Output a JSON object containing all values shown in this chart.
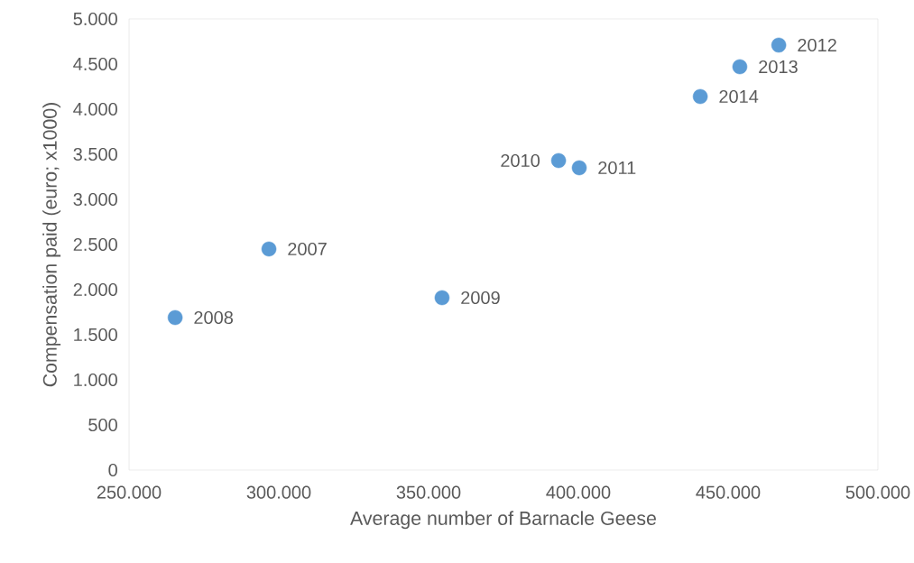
{
  "chart_data": {
    "type": "scatter",
    "xlabel": "Average number of Barnacle Geese",
    "ylabel": "Compensation paid (euro; x1000)",
    "x": [
      296700,
      265400,
      354500,
      393400,
      400300,
      466900,
      453900,
      440700
    ],
    "values": [
      2450,
      1690,
      1910,
      3430,
      3350,
      4710,
      4470,
      4140
    ],
    "color": "#5b9bd5",
    "xlim": [
      250000,
      500000
    ],
    "ylim": [
      0,
      5000
    ],
    "xticks": [
      {
        "value": 250000,
        "label": "250.000"
      },
      {
        "value": 300000,
        "label": "300.000"
      },
      {
        "value": 350000,
        "label": "350.000"
      },
      {
        "value": 400000,
        "label": "400.000"
      },
      {
        "value": 450000,
        "label": "450.000"
      },
      {
        "value": 500000,
        "label": "500.000"
      }
    ],
    "yticks": [
      0,
      500,
      {
        "value": 1000,
        "label": "1.000"
      },
      {
        "value": 1500,
        "label": "1.500"
      },
      {
        "value": 2000,
        "label": "2.000"
      },
      {
        "value": 2500,
        "label": "2.500"
      },
      {
        "value": 3000,
        "label": "3.000"
      },
      {
        "value": 3500,
        "label": "3.500"
      },
      {
        "value": 4000,
        "label": "4.000"
      },
      {
        "value": 4500,
        "label": "4.500"
      },
      {
        "value": 5000,
        "label": "5.000"
      }
    ],
    "annotations": [
      {
        "text": "2007",
        "x": 296700,
        "y": 2450
      },
      {
        "text": "2008",
        "x": 265400,
        "y": 1690
      },
      {
        "text": "2009",
        "x": 354500,
        "y": 1910
      },
      {
        "text": "2010",
        "x": 393400,
        "y": 3430
      },
      {
        "text": "2011",
        "x": 400300,
        "y": 3350
      },
      {
        "text": "2012",
        "x": 466900,
        "y": 4710
      },
      {
        "text": "2013",
        "x": 453900,
        "y": 4470
      },
      {
        "text": "2014",
        "x": 440700,
        "y": 4140
      }
    ]
  }
}
